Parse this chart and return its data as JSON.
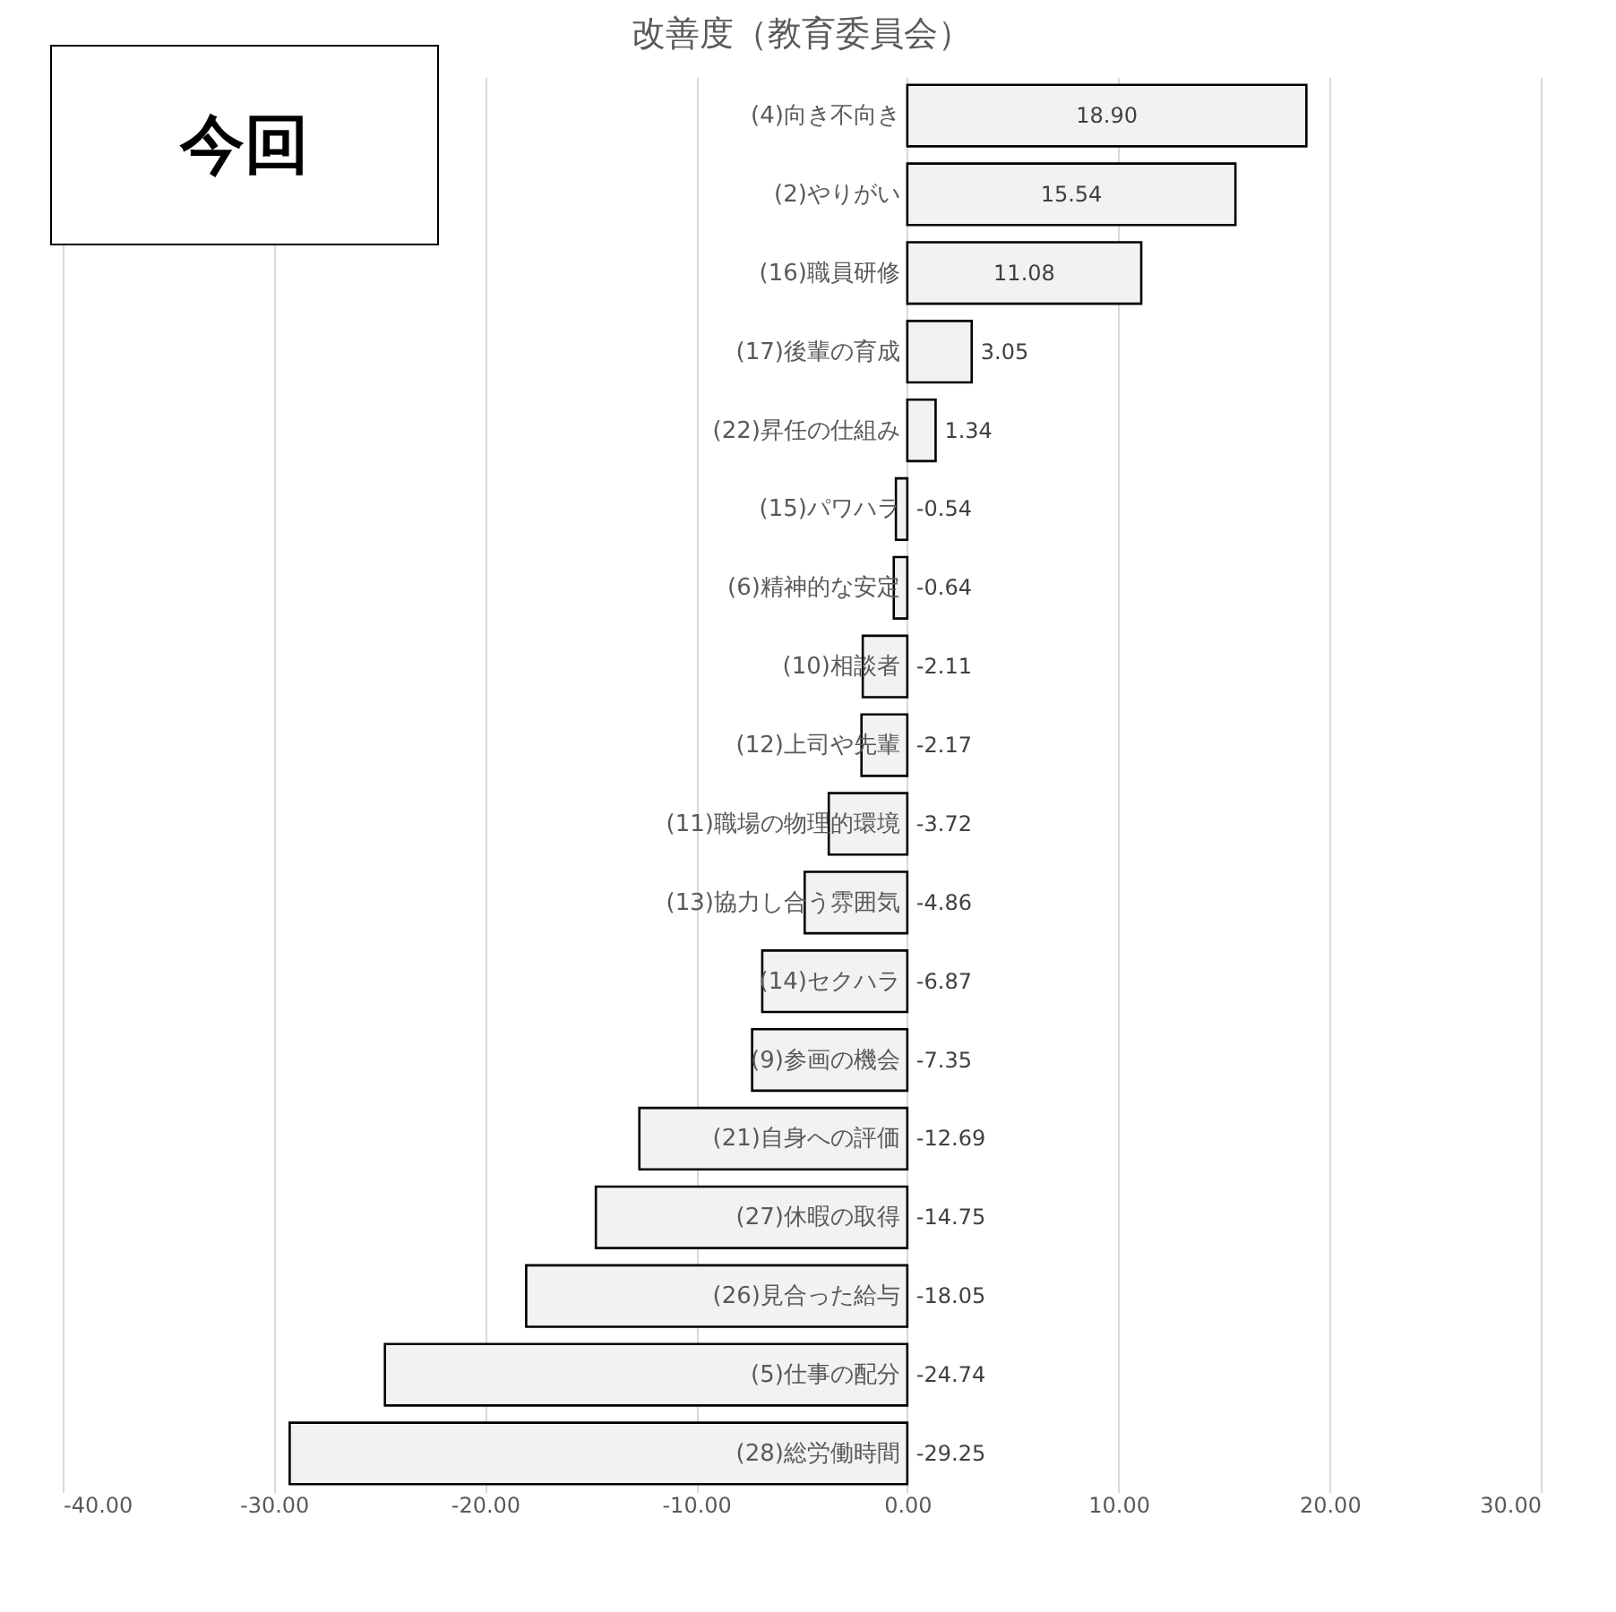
{
  "chart_data": {
    "type": "bar",
    "orientation": "horizontal",
    "title": "改善度（教育委員会）",
    "categories": [
      "(4)向き不向き",
      "(2)やりがい",
      "(16)職員研修",
      "(17)後輩の育成",
      "(22)昇任の仕組み",
      "(15)パワハラ",
      "(6)精神的な安定",
      "(10)相談者",
      "(12)上司や先輩",
      "(11)職場の物理的環境",
      "(13)協力し合う雰囲気",
      "(14)セクハラ",
      "(9)参画の機会",
      "(21)自身への評価",
      "(27)休暇の取得",
      "(26)見合った給与",
      "(5)仕事の配分",
      "(28)総労働時間"
    ],
    "values": [
      18.9,
      15.54,
      11.08,
      3.05,
      1.34,
      -0.54,
      -0.64,
      -2.11,
      -2.17,
      -3.72,
      -4.86,
      -6.87,
      -7.35,
      -12.69,
      -14.75,
      -18.05,
      -24.74,
      -29.25
    ],
    "value_labels": [
      "18.90",
      "15.54",
      "11.08",
      "3.05",
      "1.34",
      "-0.54",
      "-0.64",
      "-2.11",
      "-2.17",
      "-3.72",
      "-4.86",
      "-6.87",
      "-7.35",
      "-12.69",
      "-14.75",
      "-18.05",
      "-24.74",
      "-29.25"
    ],
    "color": "#f2f2f2",
    "xlim": [
      -40,
      30
    ],
    "xticks": [
      {
        "value": -40,
        "label": "-40.00"
      },
      {
        "value": -30,
        "label": "-30.00"
      },
      {
        "value": -20,
        "label": "-20.00"
      },
      {
        "value": -10,
        "label": "-10.00"
      },
      {
        "value": 0,
        "label": "0.00"
      },
      {
        "value": 10,
        "label": "10.00"
      },
      {
        "value": 20,
        "label": "20.00"
      },
      {
        "value": 30,
        "label": "30.00"
      }
    ],
    "grid": "x",
    "annotations": [
      "今回"
    ]
  }
}
